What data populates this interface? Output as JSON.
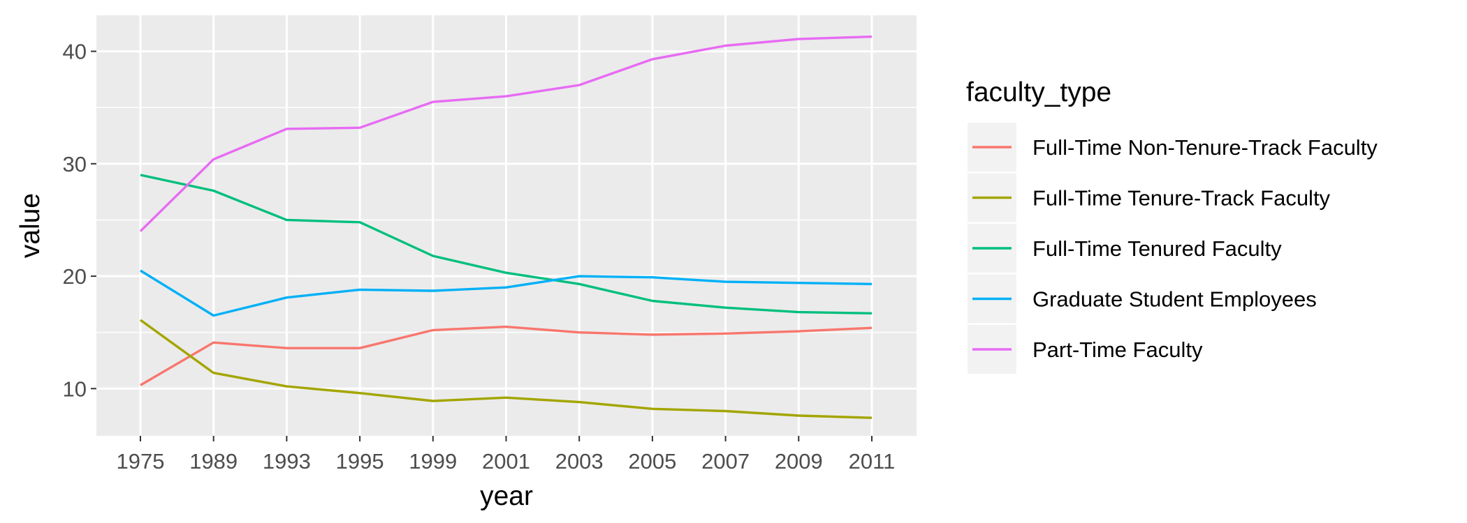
{
  "chart_data": {
    "type": "line",
    "xlabel": "year",
    "ylabel": "value",
    "categories": [
      "1975",
      "1989",
      "1993",
      "1995",
      "1999",
      "2001",
      "2003",
      "2005",
      "2007",
      "2009",
      "2011"
    ],
    "ylim": [
      5.8,
      43.2
    ],
    "y_ticks": [
      10,
      20,
      30,
      40
    ],
    "grid": true,
    "legend_title": "faculty_type",
    "legend_position": "right",
    "series": [
      {
        "name": "Full-Time Non-Tenure-Track Faculty",
        "color": "#F8766D",
        "values": [
          10.3,
          14.1,
          13.6,
          13.6,
          15.2,
          15.5,
          15.0,
          14.8,
          14.9,
          15.1,
          15.4
        ]
      },
      {
        "name": "Full-Time Tenure-Track Faculty",
        "color": "#A3A500",
        "values": [
          16.1,
          11.4,
          10.2,
          9.6,
          8.9,
          9.2,
          8.8,
          8.2,
          8.0,
          7.6,
          7.4
        ]
      },
      {
        "name": "Full-Time Tenured Faculty",
        "color": "#00BF7D",
        "values": [
          29.0,
          27.6,
          25.0,
          24.8,
          21.8,
          20.3,
          19.3,
          17.8,
          17.2,
          16.8,
          16.7
        ]
      },
      {
        "name": "Graduate Student Employees",
        "color": "#00B0F6",
        "values": [
          20.5,
          16.5,
          18.1,
          18.8,
          18.7,
          19.0,
          20.0,
          19.9,
          19.5,
          19.4,
          19.3
        ]
      },
      {
        "name": "Part-Time Faculty",
        "color": "#E76BF3",
        "values": [
          24.0,
          30.4,
          33.1,
          33.2,
          35.5,
          36.0,
          37.0,
          39.3,
          40.5,
          41.1,
          41.3
        ]
      }
    ]
  }
}
